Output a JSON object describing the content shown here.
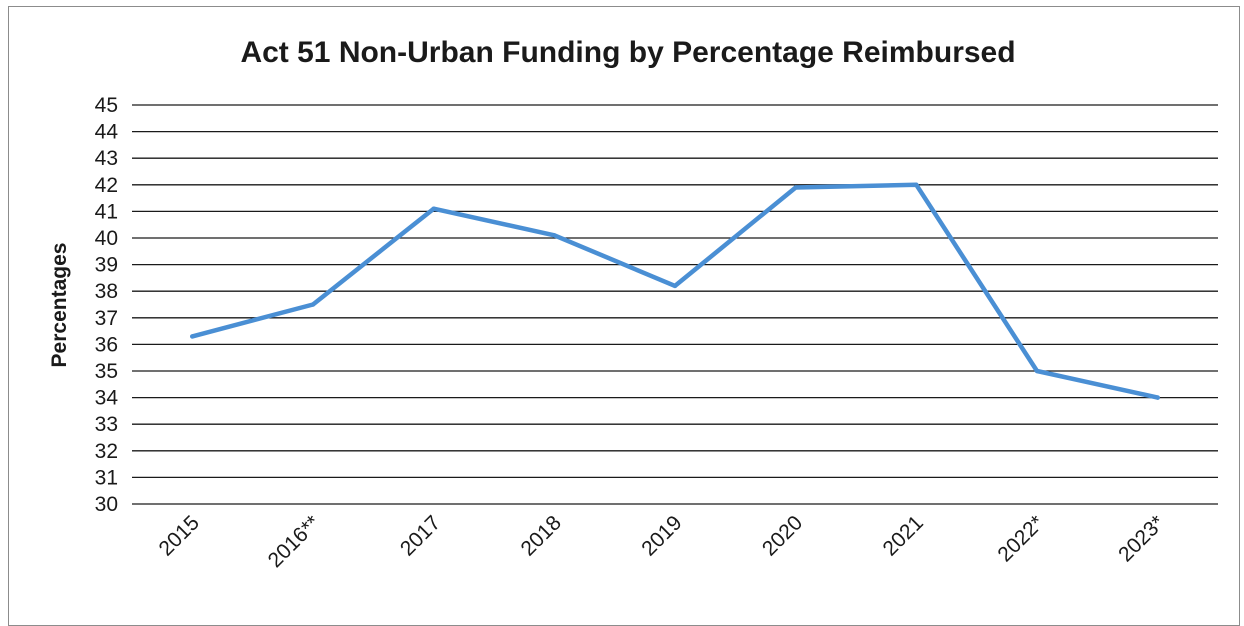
{
  "chart_data": {
    "type": "line",
    "title": "Act 51 Non-Urban Funding by Percentage Reimbursed",
    "ylabel": "Percentages",
    "xlabel": "",
    "categories": [
      "2015",
      "2016**",
      "2017",
      "2018",
      "2019",
      "2020",
      "2021",
      "2022*",
      "2023*"
    ],
    "series": [
      {
        "values": [
          36.3,
          37.5,
          41.1,
          40.1,
          38.2,
          41.9,
          42.0,
          35.0,
          34.0
        ]
      }
    ],
    "ylim": [
      30,
      45
    ],
    "yticks": [
      "30",
      "31",
      "32",
      "33",
      "34",
      "35",
      "36",
      "37",
      "38",
      "39",
      "40",
      "41",
      "42",
      "43",
      "44",
      "45"
    ],
    "grid": true,
    "legend": "none",
    "line_color": "#4a8fd4"
  }
}
